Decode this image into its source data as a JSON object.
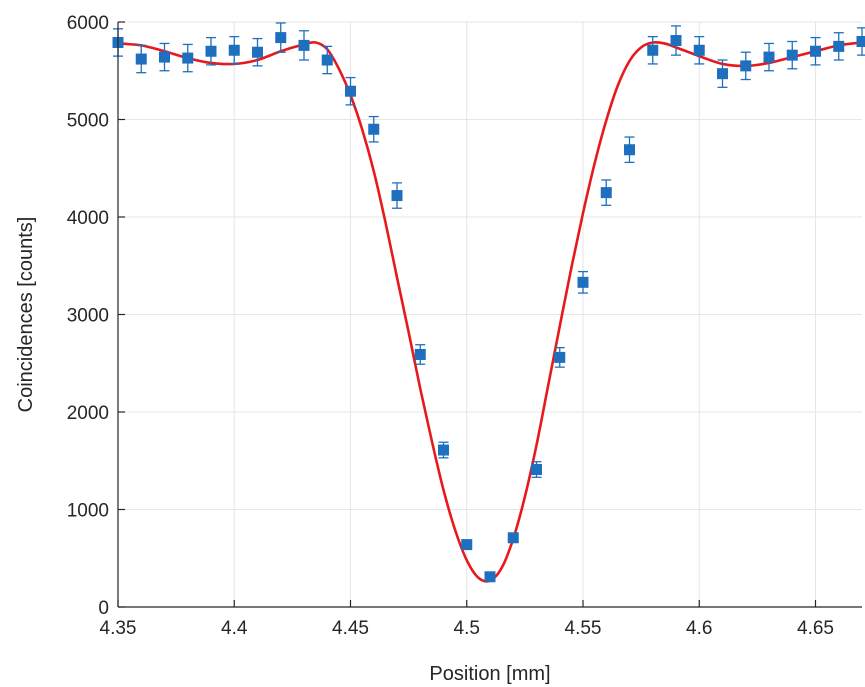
{
  "chart_data": {
    "type": "scatter",
    "title": "",
    "xlabel": "Position [mm]",
    "ylabel": "Coincidences [counts]",
    "xlim": [
      4.35,
      4.67
    ],
    "ylim": [
      0,
      6000
    ],
    "x_ticks": [
      4.35,
      4.4,
      4.45,
      4.5,
      4.55,
      4.6,
      4.65
    ],
    "x_tick_labels": [
      "4.35",
      "4.4",
      "4.45",
      "4.5",
      "4.55",
      "4.6",
      "4.65"
    ],
    "y_ticks": [
      0,
      1000,
      2000,
      3000,
      4000,
      5000,
      6000
    ],
    "y_tick_labels": [
      "0",
      "1000",
      "2000",
      "3000",
      "4000",
      "5000",
      "6000"
    ],
    "grid": true,
    "legend": "none",
    "series": [
      {
        "type": "scatter",
        "marker": "square",
        "color": "#1f6fbf",
        "x": [
          4.35,
          4.36,
          4.37,
          4.38,
          4.39,
          4.4,
          4.41,
          4.42,
          4.43,
          4.44,
          4.45,
          4.46,
          4.47,
          4.48,
          4.49,
          4.5,
          4.51,
          4.52,
          4.53,
          4.54,
          4.55,
          4.56,
          4.57,
          4.58,
          4.59,
          4.6,
          4.61,
          4.62,
          4.63,
          4.64,
          4.65,
          4.66,
          4.67
        ],
        "y": [
          5790,
          5620,
          5640,
          5630,
          5700,
          5710,
          5690,
          5840,
          5760,
          5610,
          5290,
          4900,
          4220,
          2590,
          1610,
          640,
          310,
          710,
          1410,
          2560,
          3330,
          4250,
          4690,
          5710,
          5810,
          5710,
          5470,
          5550,
          5640,
          5660,
          5700,
          5750,
          5800
        ],
        "err": [
          140,
          140,
          140,
          140,
          140,
          140,
          140,
          150,
          150,
          140,
          140,
          130,
          130,
          100,
          80,
          30,
          20,
          40,
          80,
          100,
          110,
          130,
          130,
          140,
          150,
          140,
          140,
          140,
          140,
          140,
          140,
          140,
          140
        ]
      },
      {
        "type": "line",
        "color": "#e8191c",
        "x": [
          4.35,
          4.36,
          4.37,
          4.38,
          4.39,
          4.4,
          4.41,
          4.42,
          4.43,
          4.435,
          4.44,
          4.445,
          4.45,
          4.455,
          4.46,
          4.465,
          4.47,
          4.475,
          4.48,
          4.485,
          4.49,
          4.495,
          4.5,
          4.505,
          4.51,
          4.515,
          4.52,
          4.525,
          4.53,
          4.535,
          4.54,
          4.545,
          4.55,
          4.555,
          4.56,
          4.565,
          4.57,
          4.575,
          4.58,
          4.585,
          4.59,
          4.6,
          4.61,
          4.62,
          4.63,
          4.64,
          4.65,
          4.66,
          4.67
        ],
        "y": [
          5780,
          5760,
          5700,
          5630,
          5580,
          5570,
          5610,
          5700,
          5770,
          5790,
          5720,
          5520,
          5250,
          4900,
          4470,
          3950,
          3380,
          2820,
          2240,
          1700,
          1200,
          790,
          480,
          300,
          270,
          400,
          700,
          1130,
          1660,
          2270,
          2880,
          3480,
          4040,
          4550,
          4990,
          5350,
          5600,
          5740,
          5790,
          5780,
          5740,
          5650,
          5570,
          5550,
          5580,
          5640,
          5700,
          5760,
          5790
        ]
      }
    ]
  }
}
